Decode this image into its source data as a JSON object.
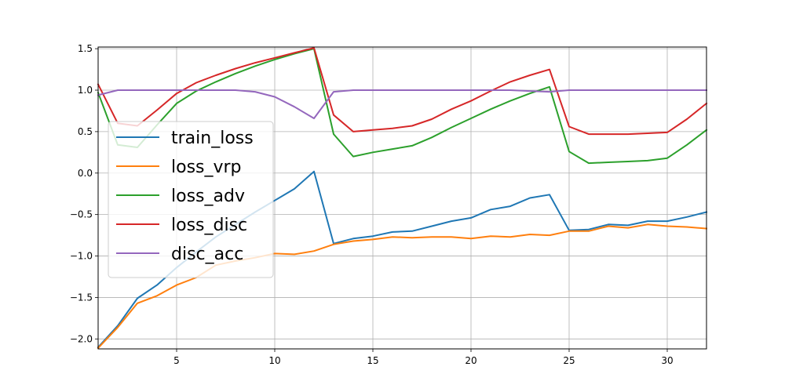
{
  "chart_data": {
    "type": "line",
    "x": [
      1,
      2,
      3,
      4,
      5,
      6,
      7,
      8,
      9,
      10,
      11,
      12,
      13,
      14,
      15,
      16,
      17,
      18,
      19,
      20,
      21,
      22,
      23,
      24,
      25,
      26,
      27,
      28,
      29,
      30,
      31,
      32
    ],
    "xlim": [
      1,
      32
    ],
    "ylim": [
      -2.12,
      1.52
    ],
    "xticks": [
      5,
      10,
      15,
      20,
      25,
      30
    ],
    "yticks": [
      -2.0,
      -1.5,
      -1.0,
      -0.5,
      0.0,
      0.5,
      1.0,
      1.5
    ],
    "grid": true,
    "legend_position": "center-left",
    "title": "",
    "xlabel": "",
    "ylabel": "",
    "series": [
      {
        "name": "train_loss",
        "color": "#1f77b4",
        "values": [
          -2.1,
          -1.84,
          -1.51,
          -1.35,
          -1.14,
          -0.95,
          -0.77,
          -0.62,
          -0.47,
          -0.33,
          -0.19,
          0.02,
          -0.85,
          -0.79,
          -0.76,
          -0.71,
          -0.7,
          -0.64,
          -0.58,
          -0.54,
          -0.44,
          -0.4,
          -0.3,
          -0.26,
          -0.69,
          -0.68,
          -0.62,
          -0.63,
          -0.58,
          -0.58,
          -0.53,
          -0.47
        ]
      },
      {
        "name": "loss_vrp",
        "color": "#ff7f0e",
        "values": [
          -2.11,
          -1.86,
          -1.57,
          -1.48,
          -1.35,
          -1.26,
          -1.11,
          -1.06,
          -1.02,
          -0.97,
          -0.98,
          -0.94,
          -0.86,
          -0.82,
          -0.8,
          -0.77,
          -0.78,
          -0.77,
          -0.77,
          -0.79,
          -0.76,
          -0.77,
          -0.74,
          -0.75,
          -0.7,
          -0.7,
          -0.64,
          -0.66,
          -0.62,
          -0.64,
          -0.65,
          -0.67
        ]
      },
      {
        "name": "loss_adv",
        "color": "#2ca02c",
        "values": [
          0.97,
          0.34,
          0.31,
          0.58,
          0.84,
          0.99,
          1.1,
          1.2,
          1.29,
          1.37,
          1.44,
          1.5,
          0.47,
          0.2,
          0.25,
          0.29,
          0.33,
          0.43,
          0.55,
          0.66,
          0.77,
          0.87,
          0.96,
          1.04,
          0.26,
          0.12,
          0.13,
          0.14,
          0.15,
          0.18,
          0.34,
          0.52
        ]
      },
      {
        "name": "loss_disc",
        "color": "#d62728",
        "values": [
          1.07,
          0.6,
          0.57,
          0.76,
          0.96,
          1.09,
          1.18,
          1.26,
          1.33,
          1.39,
          1.45,
          1.51,
          0.7,
          0.5,
          0.52,
          0.54,
          0.57,
          0.65,
          0.77,
          0.87,
          0.99,
          1.1,
          1.18,
          1.25,
          0.56,
          0.47,
          0.47,
          0.47,
          0.48,
          0.49,
          0.65,
          0.84
        ]
      },
      {
        "name": "disc_acc",
        "color": "#9467bd",
        "values": [
          0.94,
          1.0,
          1.0,
          1.0,
          1.0,
          1.0,
          1.0,
          1.0,
          0.98,
          0.92,
          0.8,
          0.66,
          0.98,
          1.0,
          1.0,
          1.0,
          1.0,
          1.0,
          1.0,
          1.0,
          1.0,
          1.0,
          0.99,
          0.98,
          1.0,
          1.0,
          1.0,
          1.0,
          1.0,
          1.0,
          1.0,
          1.0
        ]
      }
    ]
  }
}
